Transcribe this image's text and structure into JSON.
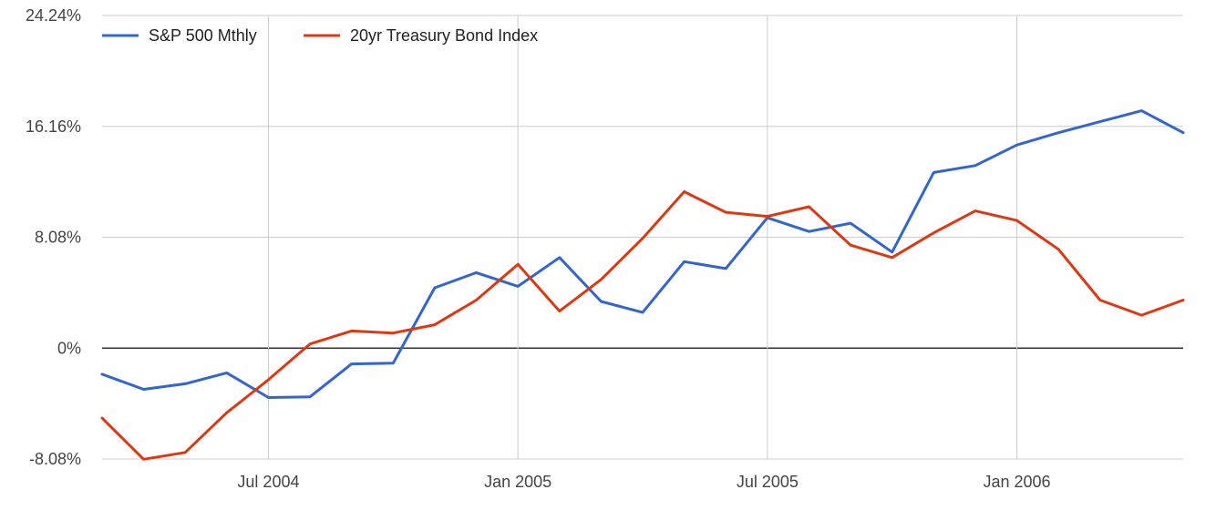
{
  "chart_data": {
    "type": "line",
    "title": "",
    "xlabel": "",
    "ylabel": "",
    "x": [
      "2004-03",
      "2004-04",
      "2004-05",
      "2004-06",
      "2004-07",
      "2004-08",
      "2004-09",
      "2004-10",
      "2004-11",
      "2004-12",
      "2005-01",
      "2005-02",
      "2005-03",
      "2005-04",
      "2005-05",
      "2005-06",
      "2005-07",
      "2005-08",
      "2005-09",
      "2005-10",
      "2005-11",
      "2005-12",
      "2006-01",
      "2006-02",
      "2006-03",
      "2006-04",
      "2006-05"
    ],
    "x_ticks": [
      {
        "x": "2004-07",
        "label": "Jul 2004"
      },
      {
        "x": "2005-01",
        "label": "Jan 2005"
      },
      {
        "x": "2005-07",
        "label": "Jul 2005"
      },
      {
        "x": "2006-01",
        "label": "Jan 2006"
      }
    ],
    "y_ticks": [
      {
        "value": -8.08,
        "label": "-8.08%"
      },
      {
        "value": 0,
        "label": "0%"
      },
      {
        "value": 8.08,
        "label": "8.08%"
      },
      {
        "value": 16.16,
        "label": "16.16%"
      },
      {
        "value": 24.24,
        "label": "24.24%"
      }
    ],
    "ylim": [
      -8.08,
      24.24
    ],
    "y_unit": "%",
    "grid": true,
    "legend_position": "top-left",
    "series": [
      {
        "name": "S&P 500 Mthly",
        "color": "#3366cc",
        "values": [
          -1.9,
          -3.0,
          -2.6,
          -1.8,
          -3.6,
          -3.55,
          -1.15,
          -1.1,
          4.4,
          5.5,
          4.5,
          6.6,
          3.4,
          2.6,
          6.3,
          5.8,
          9.5,
          8.5,
          9.1,
          7.0,
          12.8,
          13.3,
          14.8,
          15.7,
          16.5,
          17.3,
          15.7
        ]
      },
      {
        "name": "20yr Treasury Bond Index",
        "color": "#dc3912",
        "values": [
          -5.1,
          -8.1,
          -7.6,
          -4.7,
          -2.3,
          0.3,
          1.25,
          1.1,
          1.7,
          3.5,
          6.1,
          2.7,
          5.0,
          8.0,
          11.4,
          9.9,
          9.6,
          10.3,
          7.5,
          6.6,
          8.4,
          10.0,
          9.3,
          7.2,
          3.5,
          2.4,
          3.5
        ]
      }
    ]
  }
}
